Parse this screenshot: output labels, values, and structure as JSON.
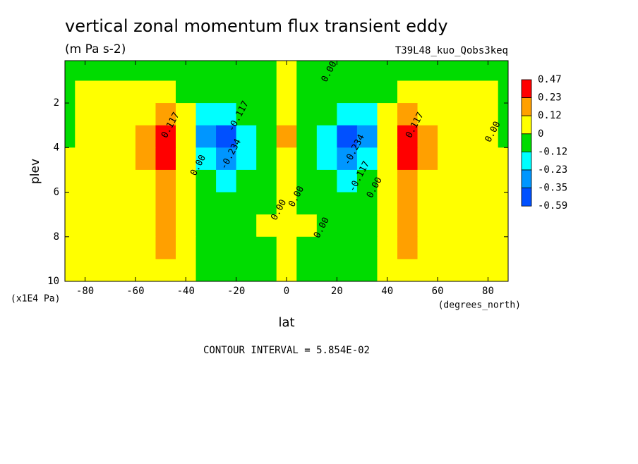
{
  "chart_data": {
    "type": "contour",
    "title": "vertical zonal momentum flux transient eddy",
    "subtitle": "(m Pa s-2)",
    "dataset": "T39L48_kuo_Qobs3keq",
    "x_label": "lat",
    "x_units": "(degrees_north)",
    "y_label": "plev",
    "y_units": "(x1E4 Pa)",
    "footnote": "CONTOUR INTERVAL = 5.854E-02",
    "xlim": [
      -88,
      88
    ],
    "ylim": [
      10,
      0.1
    ],
    "xticks": [
      -80,
      -60,
      -40,
      -20,
      0,
      20,
      40,
      60,
      80
    ],
    "yticks": [
      2,
      4,
      6,
      8,
      10
    ],
    "x": [
      -88,
      -80,
      -72,
      -64,
      -56,
      -48,
      -40,
      -32,
      -24,
      -16,
      -8,
      0,
      8,
      16,
      24,
      32,
      40,
      48,
      56,
      64,
      72,
      80,
      88
    ],
    "y": [
      0.5,
      1.5,
      2.5,
      3.5,
      4.5,
      5.5,
      6.5,
      7.5,
      8.5,
      9.5
    ],
    "z": [
      [
        -0.01,
        -0.01,
        -0.01,
        -0.02,
        -0.02,
        -0.02,
        -0.02,
        -0.03,
        -0.03,
        -0.03,
        -0.02,
        0.02,
        -0.02,
        -0.03,
        -0.03,
        -0.03,
        -0.02,
        -0.02,
        -0.02,
        -0.02,
        -0.01,
        -0.01,
        -0.01
      ],
      [
        -0.01,
        0.01,
        0.02,
        0.03,
        0.03,
        0.02,
        -0.03,
        -0.06,
        -0.08,
        -0.06,
        -0.03,
        0.03,
        -0.03,
        -0.06,
        -0.08,
        -0.06,
        -0.03,
        0.02,
        0.03,
        0.03,
        0.02,
        0.01,
        -0.01
      ],
      [
        -0.01,
        0.01,
        0.02,
        0.03,
        0.06,
        0.12,
        0.05,
        -0.15,
        -0.2,
        -0.1,
        -0.05,
        0.1,
        -0.05,
        -0.1,
        -0.2,
        -0.15,
        0.05,
        0.12,
        0.06,
        0.03,
        0.02,
        0.01,
        -0.01
      ],
      [
        -0.01,
        0.01,
        0.02,
        0.04,
        0.15,
        0.35,
        0.1,
        -0.25,
        -0.4,
        -0.15,
        -0.06,
        0.15,
        -0.06,
        -0.15,
        -0.4,
        -0.25,
        0.1,
        0.35,
        0.15,
        0.04,
        0.02,
        0.01,
        -0.01
      ],
      [
        0.01,
        0.01,
        0.02,
        0.04,
        0.15,
        0.3,
        0.1,
        -0.18,
        -0.3,
        -0.14,
        -0.05,
        0.08,
        -0.05,
        -0.14,
        -0.3,
        -0.18,
        0.1,
        0.3,
        0.15,
        0.04,
        0.02,
        0.01,
        0.01
      ],
      [
        0.01,
        0.01,
        0.02,
        0.03,
        0.1,
        0.18,
        0.06,
        -0.1,
        -0.14,
        -0.08,
        -0.03,
        0.05,
        -0.03,
        -0.08,
        -0.14,
        -0.1,
        0.06,
        0.18,
        0.1,
        0.03,
        0.02,
        0.01,
        0.01
      ],
      [
        0.01,
        0.01,
        0.02,
        0.03,
        0.08,
        0.16,
        0.05,
        -0.05,
        -0.06,
        -0.04,
        -0.02,
        0.03,
        -0.02,
        -0.04,
        -0.06,
        -0.05,
        0.05,
        0.16,
        0.08,
        0.03,
        0.02,
        0.01,
        0.01
      ],
      [
        0.01,
        0.01,
        0.02,
        0.02,
        0.06,
        0.14,
        0.04,
        -0.04,
        -0.05,
        -0.03,
        0.01,
        0.02,
        0.01,
        -0.03,
        -0.05,
        -0.04,
        0.04,
        0.14,
        0.06,
        0.02,
        0.02,
        0.01,
        0.01
      ],
      [
        0.01,
        0.01,
        0.01,
        0.02,
        0.05,
        0.12,
        0.03,
        -0.05,
        -0.1,
        -0.04,
        -0.01,
        0.01,
        -0.01,
        -0.04,
        -0.1,
        -0.05,
        0.03,
        0.12,
        0.05,
        0.02,
        0.01,
        0.01,
        0.01
      ],
      [
        0.01,
        0.01,
        0.01,
        0.02,
        0.03,
        0.04,
        0.02,
        -0.02,
        -0.03,
        -0.02,
        -0.01,
        0.02,
        -0.01,
        -0.02,
        -0.03,
        -0.02,
        0.02,
        0.04,
        0.03,
        0.02,
        0.01,
        0.01,
        0.01
      ]
    ],
    "levels": [
      0.47,
      0.23,
      0.12,
      0,
      -0.12,
      -0.23,
      -0.35,
      -0.59
    ],
    "level_colors": [
      "#ff0000",
      "#ffa000",
      "#ffff00",
      "#00dc00",
      "#00ffff",
      "#0096ff",
      "#0050ff"
    ],
    "contour_labels": [
      {
        "text": "0.117",
        "lat": -46,
        "plev": 3.0
      },
      {
        "text": "-0.117",
        "lat": -19,
        "plev": 2.6
      },
      {
        "text": "-0.234",
        "lat": -22,
        "plev": 4.3
      },
      {
        "text": "0.00",
        "lat": -35,
        "plev": 4.8
      },
      {
        "text": "0.00",
        "lat": -3,
        "plev": 6.8
      },
      {
        "text": "0.00",
        "lat": 4,
        "plev": 6.2
      },
      {
        "text": "0.00",
        "lat": 14,
        "plev": 7.6
      },
      {
        "text": "0.00",
        "lat": 17,
        "plev": 0.6
      },
      {
        "text": "-0.234",
        "lat": 27,
        "plev": 4.1
      },
      {
        "text": "-0.117",
        "lat": 29,
        "plev": 5.3
      },
      {
        "text": "0.00",
        "lat": 35,
        "plev": 5.8
      },
      {
        "text": "0.117",
        "lat": 51,
        "plev": 3.0
      },
      {
        "text": "0.00",
        "lat": 82,
        "plev": 3.3
      }
    ]
  }
}
